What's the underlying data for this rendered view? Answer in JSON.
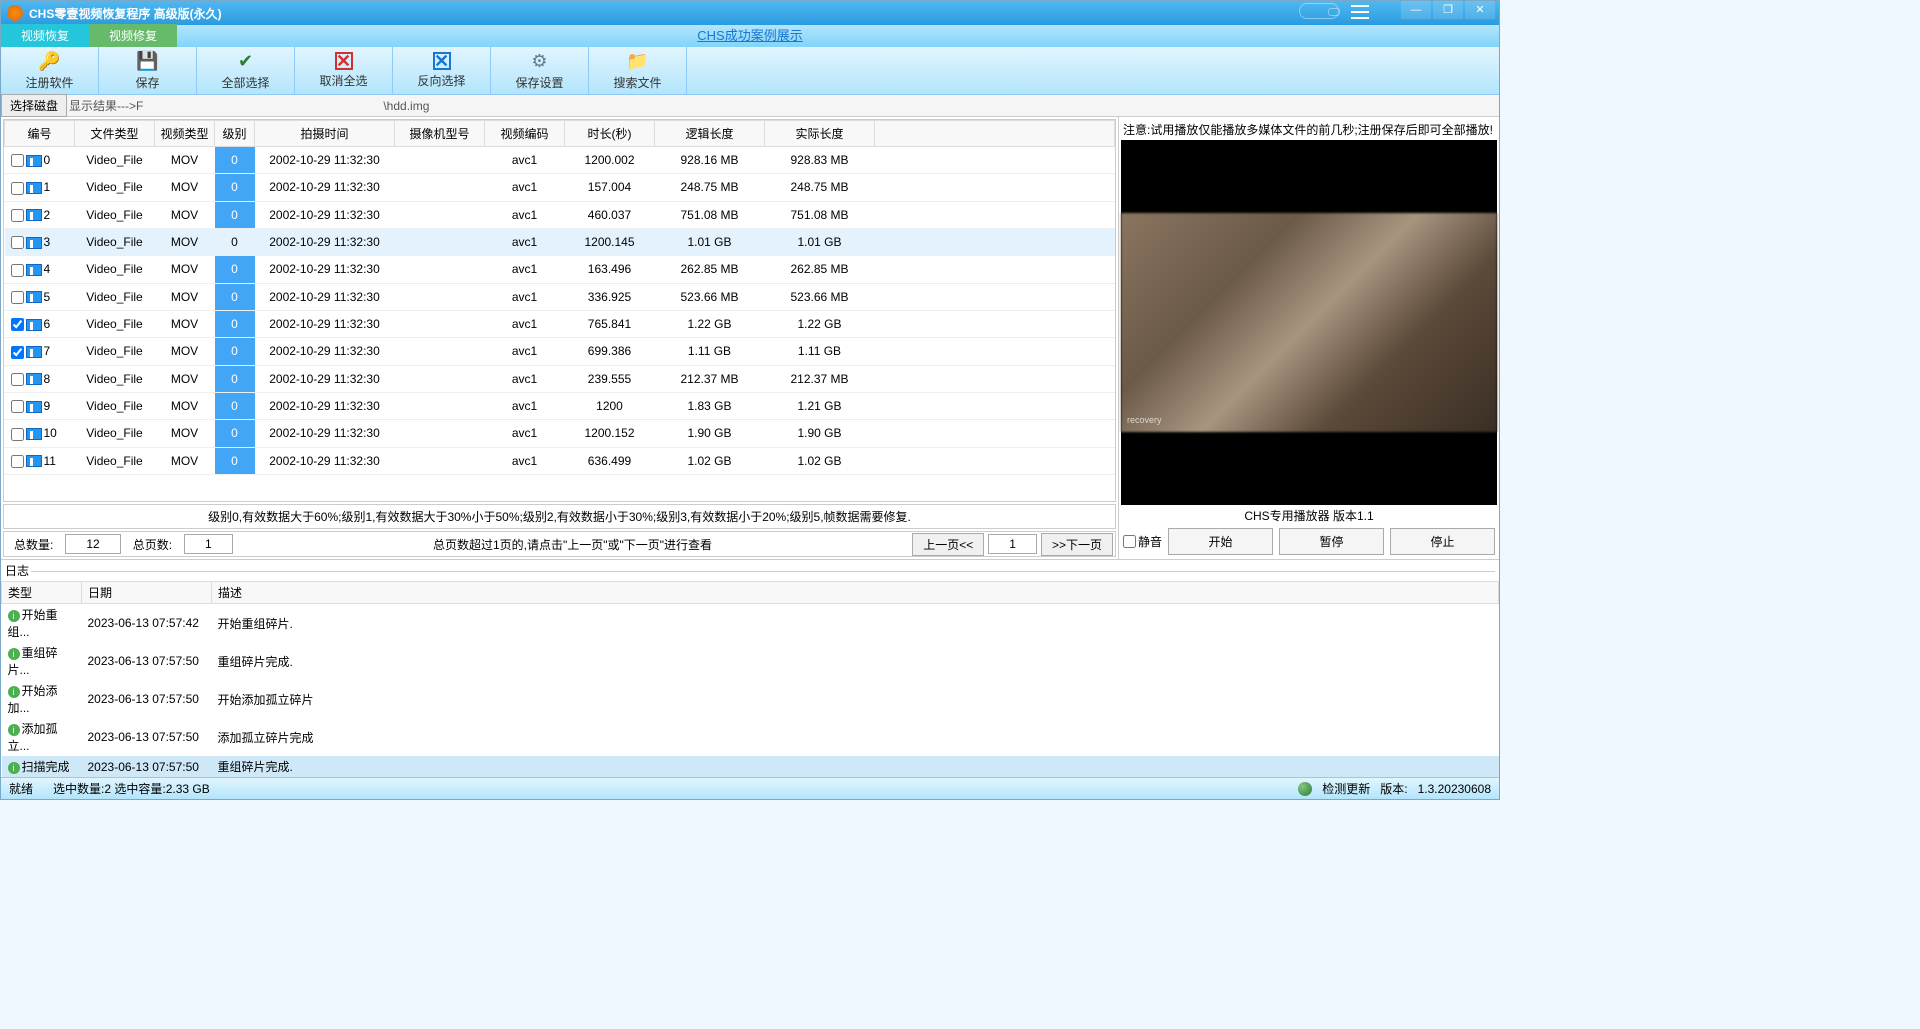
{
  "title": "CHS零壹视频恢复程序 高级版(永久)",
  "tabs": {
    "t1": "视频恢复",
    "t2": "视频修复"
  },
  "center_link": "CHS成功案例展示",
  "toolbar": {
    "register": "注册软件",
    "save": "保存",
    "select_all": "全部选择",
    "deselect": "取消全选",
    "invert": "反向选择",
    "save_settings": "保存设置",
    "search": "搜索文件"
  },
  "pathbar": {
    "disk_btn": "选择磁盘",
    "label_prefix": "显示结果--->F",
    "label_suffix": "\\hdd.img"
  },
  "columns": {
    "idx": "编号",
    "ftype": "文件类型",
    "vtype": "视频类型",
    "level": "级别",
    "time": "拍摄时间",
    "camera": "摄像机型号",
    "codec": "视频编码",
    "duration": "时长(秒)",
    "logic_size": "逻辑长度",
    "real_size": "实际长度"
  },
  "rows": [
    {
      "idx": "0",
      "checked": false,
      "ftype": "Video_File",
      "vtype": "MOV",
      "level": "0",
      "time": "2002-10-29 11:32:30",
      "camera": "",
      "codec": "avc1",
      "duration": "1200.002",
      "logic": "928.16 MB",
      "real": "928.83 MB",
      "sel": false
    },
    {
      "idx": "1",
      "checked": false,
      "ftype": "Video_File",
      "vtype": "MOV",
      "level": "0",
      "time": "2002-10-29 11:32:30",
      "camera": "",
      "codec": "avc1",
      "duration": "157.004",
      "logic": "248.75 MB",
      "real": "248.75 MB",
      "sel": false
    },
    {
      "idx": "2",
      "checked": false,
      "ftype": "Video_File",
      "vtype": "MOV",
      "level": "0",
      "time": "2002-10-29 11:32:30",
      "camera": "",
      "codec": "avc1",
      "duration": "460.037",
      "logic": "751.08 MB",
      "real": "751.08 MB",
      "sel": false
    },
    {
      "idx": "3",
      "checked": false,
      "ftype": "Video_File",
      "vtype": "MOV",
      "level": "0",
      "time": "2002-10-29 11:32:30",
      "camera": "",
      "codec": "avc1",
      "duration": "1200.145",
      "logic": "1.01 GB",
      "real": "1.01 GB",
      "sel": true
    },
    {
      "idx": "4",
      "checked": false,
      "ftype": "Video_File",
      "vtype": "MOV",
      "level": "0",
      "time": "2002-10-29 11:32:30",
      "camera": "",
      "codec": "avc1",
      "duration": "163.496",
      "logic": "262.85 MB",
      "real": "262.85 MB",
      "sel": false
    },
    {
      "idx": "5",
      "checked": false,
      "ftype": "Video_File",
      "vtype": "MOV",
      "level": "0",
      "time": "2002-10-29 11:32:30",
      "camera": "",
      "codec": "avc1",
      "duration": "336.925",
      "logic": "523.66 MB",
      "real": "523.66 MB",
      "sel": false
    },
    {
      "idx": "6",
      "checked": true,
      "ftype": "Video_File",
      "vtype": "MOV",
      "level": "0",
      "time": "2002-10-29 11:32:30",
      "camera": "",
      "codec": "avc1",
      "duration": "765.841",
      "logic": "1.22 GB",
      "real": "1.22 GB",
      "sel": false
    },
    {
      "idx": "7",
      "checked": true,
      "ftype": "Video_File",
      "vtype": "MOV",
      "level": "0",
      "time": "2002-10-29 11:32:30",
      "camera": "",
      "codec": "avc1",
      "duration": "699.386",
      "logic": "1.11 GB",
      "real": "1.11 GB",
      "sel": false
    },
    {
      "idx": "8",
      "checked": false,
      "ftype": "Video_File",
      "vtype": "MOV",
      "level": "0",
      "time": "2002-10-29 11:32:30",
      "camera": "",
      "codec": "avc1",
      "duration": "239.555",
      "logic": "212.37 MB",
      "real": "212.37 MB",
      "sel": false
    },
    {
      "idx": "9",
      "checked": false,
      "ftype": "Video_File",
      "vtype": "MOV",
      "level": "0",
      "time": "2002-10-29 11:32:30",
      "camera": "",
      "codec": "avc1",
      "duration": "1200",
      "logic": "1.83 GB",
      "real": "1.21 GB",
      "sel": false
    },
    {
      "idx": "10",
      "checked": false,
      "ftype": "Video_File",
      "vtype": "MOV",
      "level": "0",
      "time": "2002-10-29 11:32:30",
      "camera": "",
      "codec": "avc1",
      "duration": "1200.152",
      "logic": "1.90 GB",
      "real": "1.90 GB",
      "sel": false
    },
    {
      "idx": "11",
      "checked": false,
      "ftype": "Video_File",
      "vtype": "MOV",
      "level": "0",
      "time": "2002-10-29 11:32:30",
      "camera": "",
      "codec": "avc1",
      "duration": "636.499",
      "logic": "1.02 GB",
      "real": "1.02 GB",
      "sel": false
    }
  ],
  "level_hint": "级别0,有效数据大于60%;级别1,有效数据大于30%小于50%;级别2,有效数据小于30%;级别3,有效数据小于20%;级别5,帧数据需要修复.",
  "pager": {
    "total_label": "总数量:",
    "total_value": "12",
    "pages_label": "总页数:",
    "pages_value": "1",
    "hint": "总页数超过1页的,请点击\"上一页\"或\"下一页\"进行查看",
    "prev": "上一页<<",
    "page": "1",
    "next": ">>下一页"
  },
  "preview": {
    "note": "注意:试用播放仅能播放多媒体文件的前几秒;注册保存后即可全部播放!",
    "player_label": "CHS专用播放器 版本1.1",
    "mute": "静音",
    "play": "开始",
    "pause": "暂停",
    "stop": "停止"
  },
  "log": {
    "title": "日志",
    "cols": {
      "type": "类型",
      "date": "日期",
      "desc": "描述"
    },
    "rows": [
      {
        "type": "开始重组...",
        "date": "2023-06-13 07:57:42",
        "desc": "开始重组碎片.",
        "hl": false
      },
      {
        "type": "重组碎片...",
        "date": "2023-06-13 07:57:50",
        "desc": "重组碎片完成.",
        "hl": false
      },
      {
        "type": "开始添加...",
        "date": "2023-06-13 07:57:50",
        "desc": "开始添加孤立碎片",
        "hl": false
      },
      {
        "type": "添加孤立...",
        "date": "2023-06-13 07:57:50",
        "desc": "添加孤立碎片完成",
        "hl": false
      },
      {
        "type": "扫描完成",
        "date": "2023-06-13 07:57:50",
        "desc": "重组碎片完成.",
        "hl": true
      }
    ]
  },
  "status": {
    "ready": "就绪",
    "selection": "选中数量:2 选中容量:2.33 GB",
    "update": "检测更新",
    "version_label": "版本:",
    "version": "1.3.20230608"
  },
  "colors": {
    "titlebar_grad_top": "#4fb8f0",
    "titlebar_grad_bot": "#2a9be0",
    "toolbar_grad_top": "#e1f5fe",
    "toolbar_grad_bot": "#b3e5fc",
    "level_cell_bg": "#42a5f5",
    "selected_row_bg": "#e3f2fd",
    "tab_active": "#26c6da",
    "tab_green": "#66bb6a"
  }
}
